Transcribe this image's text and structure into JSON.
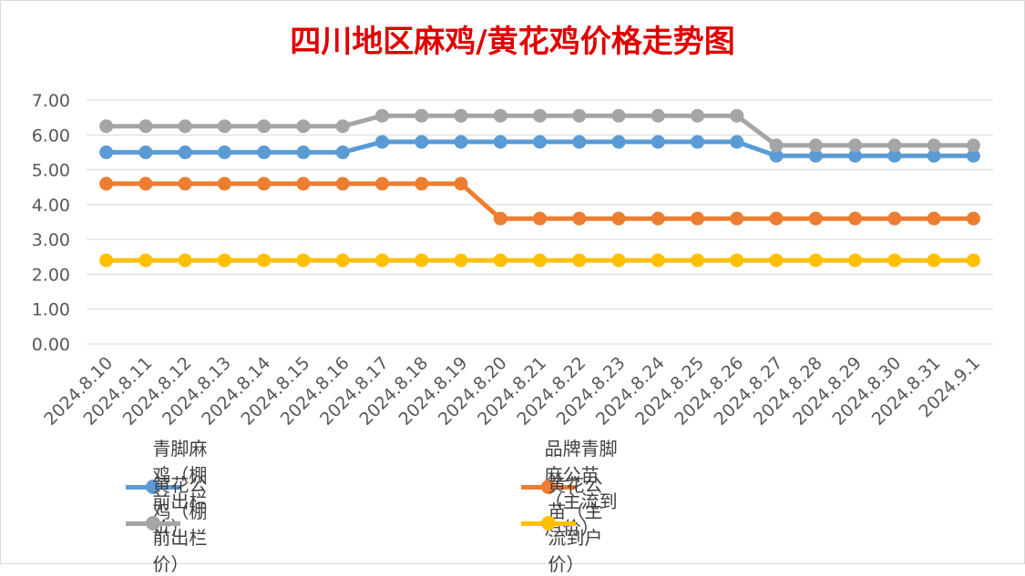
{
  "chart_data": {
    "type": "line",
    "title": "四川地区麻鸡/黄花鸡价格走势图",
    "categories": [
      "2024.8.10",
      "2024.8.11",
      "2024.8.12",
      "2024.8.13",
      "2024.8.14",
      "2024.8.15",
      "2024.8.16",
      "2024.8.17",
      "2024.8.18",
      "2024.8.19",
      "2024.8.20",
      "2024.8.21",
      "2024.8.22",
      "2024.8.23",
      "2024.8.24",
      "2024.8.25",
      "2024.8.26",
      "2024.8.27",
      "2024.8.28",
      "2024.8.29",
      "2024.8.30",
      "2024.8.31",
      "2024.9.1"
    ],
    "ylim": [
      0,
      7
    ],
    "yticks": [
      "0.00",
      "1.00",
      "2.00",
      "3.00",
      "4.00",
      "5.00",
      "6.00",
      "7.00"
    ],
    "grid": true,
    "legend_position": "bottom",
    "series": [
      {
        "name": "青脚麻鸡（棚前出栏价）",
        "color": "#5b9bd5",
        "values": [
          5.5,
          5.5,
          5.5,
          5.5,
          5.5,
          5.5,
          5.5,
          5.8,
          5.8,
          5.8,
          5.8,
          5.8,
          5.8,
          5.8,
          5.8,
          5.8,
          5.8,
          5.4,
          5.4,
          5.4,
          5.4,
          5.4,
          5.4
        ]
      },
      {
        "name": "品牌青脚麻公苗（主流到户价）",
        "color": "#ed7d31",
        "values": [
          4.6,
          4.6,
          4.6,
          4.6,
          4.6,
          4.6,
          4.6,
          4.6,
          4.6,
          4.6,
          3.6,
          3.6,
          3.6,
          3.6,
          3.6,
          3.6,
          3.6,
          3.6,
          3.6,
          3.6,
          3.6,
          3.6,
          3.6
        ]
      },
      {
        "name": "黄花公鸡（棚前出栏价）",
        "color": "#a5a5a5",
        "values": [
          6.25,
          6.25,
          6.25,
          6.25,
          6.25,
          6.25,
          6.25,
          6.55,
          6.55,
          6.55,
          6.55,
          6.55,
          6.55,
          6.55,
          6.55,
          6.55,
          6.55,
          5.7,
          5.7,
          5.7,
          5.7,
          5.7,
          5.7
        ]
      },
      {
        "name": "黄花公苗（主流到户价）",
        "color": "#ffc000",
        "values": [
          2.4,
          2.4,
          2.4,
          2.4,
          2.4,
          2.4,
          2.4,
          2.4,
          2.4,
          2.4,
          2.4,
          2.4,
          2.4,
          2.4,
          2.4,
          2.4,
          2.4,
          2.4,
          2.4,
          2.4,
          2.4,
          2.4,
          2.4
        ]
      }
    ]
  }
}
